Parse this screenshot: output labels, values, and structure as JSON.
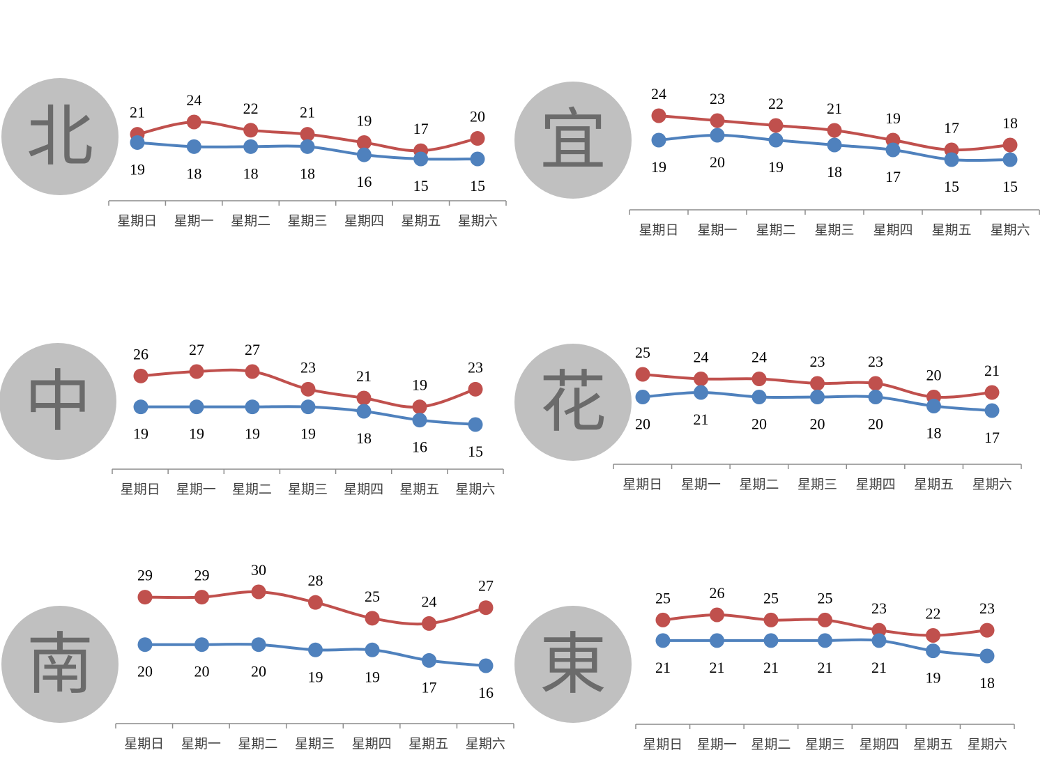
{
  "colors": {
    "high": "#c0504d",
    "low": "#4f81bd",
    "circle": "#c0c0c0",
    "region_text": "#6b6b6b"
  },
  "chart_data": [
    {
      "type": "line",
      "region": "北",
      "categories": [
        "星期日",
        "星期一",
        "星期二",
        "星期三",
        "星期四",
        "星期五",
        "星期六"
      ],
      "series": [
        {
          "values": [
            21,
            24,
            22,
            21,
            19,
            17,
            20
          ]
        },
        {
          "values": [
            19,
            18,
            18,
            18,
            16,
            15,
            15
          ]
        }
      ]
    },
    {
      "type": "line",
      "region": "宜",
      "categories": [
        "星期日",
        "星期一",
        "星期二",
        "星期三",
        "星期四",
        "星期五",
        "星期六"
      ],
      "series": [
        {
          "values": [
            24,
            23,
            22,
            21,
            19,
            17,
            18
          ]
        },
        {
          "values": [
            19,
            20,
            19,
            18,
            17,
            15,
            15
          ]
        }
      ]
    },
    {
      "type": "line",
      "region": "中",
      "categories": [
        "星期日",
        "星期一",
        "星期二",
        "星期三",
        "星期四",
        "星期五",
        "星期六"
      ],
      "series": [
        {
          "values": [
            26,
            27,
            27,
            23,
            21,
            19,
            23
          ]
        },
        {
          "values": [
            19,
            19,
            19,
            19,
            18,
            16,
            15
          ]
        }
      ]
    },
    {
      "type": "line",
      "region": "花",
      "categories": [
        "星期日",
        "星期一",
        "星期二",
        "星期三",
        "星期四",
        "星期五",
        "星期六"
      ],
      "series": [
        {
          "values": [
            25,
            24,
            24,
            23,
            23,
            20,
            21
          ]
        },
        {
          "values": [
            20,
            21,
            20,
            20,
            20,
            18,
            17
          ]
        }
      ]
    },
    {
      "type": "line",
      "region": "南",
      "categories": [
        "星期日",
        "星期一",
        "星期二",
        "星期三",
        "星期四",
        "星期五",
        "星期六"
      ],
      "series": [
        {
          "values": [
            29,
            29,
            30,
            28,
            25,
            24,
            27
          ]
        },
        {
          "values": [
            20,
            20,
            20,
            19,
            19,
            17,
            16
          ]
        }
      ]
    },
    {
      "type": "line",
      "region": "東",
      "categories": [
        "星期日",
        "星期一",
        "星期二",
        "星期三",
        "星期四",
        "星期五",
        "星期六"
      ],
      "series": [
        {
          "values": [
            25,
            26,
            25,
            25,
            23,
            22,
            23
          ]
        },
        {
          "values": [
            21,
            21,
            21,
            21,
            21,
            19,
            18
          ]
        }
      ]
    }
  ]
}
